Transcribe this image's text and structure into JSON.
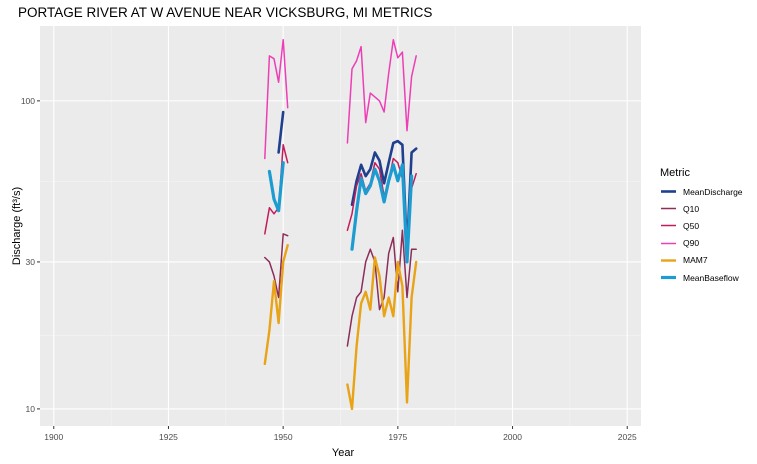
{
  "chart_data": {
    "type": "line",
    "title": "PORTAGE RIVER AT W AVENUE NEAR VICKSBURG, MI  METRICS",
    "xlabel": "Year",
    "ylabel": "Discharge (ft³/s)",
    "x_ticks": [
      1900,
      1925,
      1950,
      1975,
      2000,
      2025
    ],
    "y_ticks": [
      10,
      30,
      100
    ],
    "y_scale": "log10",
    "xlim": [
      1897,
      2028
    ],
    "ylim": [
      8.8,
      175
    ],
    "legend_title": "Metric",
    "legend_position": "right",
    "background": "#ebebeb",
    "grid": true,
    "series": [
      {
        "name": "MeanDischarge",
        "color": "#1f3f8f",
        "width": 2.6,
        "segments": [
          [
            [
              1949,
              68
            ],
            [
              1950,
              92
            ]
          ],
          [
            [
              1965,
              46
            ],
            [
              1966,
              55
            ],
            [
              1967,
              62
            ],
            [
              1968,
              57
            ],
            [
              1969,
              60
            ],
            [
              1970,
              68
            ],
            [
              1971,
              64
            ],
            [
              1972,
              54
            ],
            [
              1973,
              63
            ],
            [
              1974,
              73
            ],
            [
              1975,
              74
            ],
            [
              1976,
              72
            ],
            [
              1977,
              33
            ],
            [
              1978,
              68
            ],
            [
              1979,
              70
            ]
          ]
        ]
      },
      {
        "name": "Q10",
        "color": "#8c2d5a",
        "width": 1.5,
        "segments": [
          [
            [
              1946,
              31
            ],
            [
              1947,
              30
            ],
            [
              1948,
              27
            ],
            [
              1949,
              23
            ],
            [
              1950,
              37
            ],
            [
              1951,
              36.5
            ]
          ],
          [
            [
              1964,
              16
            ],
            [
              1965,
              20
            ],
            [
              1966,
              23
            ],
            [
              1967,
              24
            ],
            [
              1968,
              30
            ],
            [
              1969,
              33
            ],
            [
              1970,
              30
            ],
            [
              1971,
              21
            ],
            [
              1972,
              23
            ],
            [
              1973,
              32
            ],
            [
              1974,
              36
            ],
            [
              1975,
              24
            ],
            [
              1976,
              38
            ],
            [
              1977,
              23
            ],
            [
              1978,
              33
            ],
            [
              1979,
              33
            ]
          ]
        ]
      },
      {
        "name": "Q50",
        "color": "#c21c5a",
        "width": 1.5,
        "segments": [
          [
            [
              1946,
              37
            ],
            [
              1947,
              45
            ],
            [
              1948,
              43
            ],
            [
              1949,
              45
            ],
            [
              1950,
              72
            ],
            [
              1951,
              63
            ]
          ],
          [
            [
              1964,
              38
            ],
            [
              1965,
              43
            ],
            [
              1966,
              53
            ],
            [
              1967,
              58
            ],
            [
              1968,
              51
            ],
            [
              1969,
              54
            ],
            [
              1970,
              63
            ],
            [
              1971,
              60
            ],
            [
              1972,
              49
            ],
            [
              1973,
              55
            ],
            [
              1974,
              65
            ],
            [
              1975,
              63
            ],
            [
              1976,
              56
            ],
            [
              1977,
              36
            ],
            [
              1978,
              52
            ],
            [
              1979,
              58
            ]
          ]
        ]
      },
      {
        "name": "Q90",
        "color": "#ee3eb6",
        "width": 1.5,
        "segments": [
          [
            [
              1946,
              65
            ],
            [
              1947,
              140
            ],
            [
              1948,
              137
            ],
            [
              1949,
              115
            ],
            [
              1950,
              158
            ],
            [
              1951,
              95
            ]
          ],
          [
            [
              1964,
              73
            ],
            [
              1965,
              127
            ],
            [
              1966,
              135
            ],
            [
              1967,
              150
            ],
            [
              1968,
              85
            ],
            [
              1969,
              106
            ],
            [
              1970,
              103
            ],
            [
              1971,
              100
            ],
            [
              1972,
              92
            ],
            [
              1973,
              123
            ],
            [
              1974,
              158
            ],
            [
              1975,
              138
            ],
            [
              1976,
              144
            ],
            [
              1977,
              80
            ],
            [
              1978,
              120
            ],
            [
              1979,
              140
            ]
          ]
        ]
      },
      {
        "name": "MAM7",
        "color": "#e8a317",
        "width": 2.4,
        "segments": [
          [
            [
              1946,
              14
            ],
            [
              1947,
              18
            ],
            [
              1948,
              26
            ],
            [
              1949,
              19
            ],
            [
              1950,
              30
            ],
            [
              1951,
              34
            ]
          ],
          [
            [
              1964,
              12
            ],
            [
              1965,
              10
            ],
            [
              1966,
              16
            ],
            [
              1967,
              22
            ],
            [
              1968,
              24
            ],
            [
              1969,
              21
            ],
            [
              1970,
              31
            ],
            [
              1971,
              27
            ],
            [
              1972,
              20
            ],
            [
              1973,
              23
            ],
            [
              1974,
              20
            ],
            [
              1975,
              30
            ],
            [
              1976,
              25
            ],
            [
              1977,
              10.5
            ],
            [
              1978,
              23
            ],
            [
              1979,
              30
            ]
          ]
        ]
      },
      {
        "name": "MeanBaseflow",
        "color": "#1c9cd0",
        "width": 3.2,
        "segments": [
          [
            [
              1947,
              59
            ],
            [
              1948,
              48
            ],
            [
              1949,
              44
            ],
            [
              1950,
              63
            ]
          ],
          [
            [
              1965,
              33
            ],
            [
              1966,
              44
            ],
            [
              1967,
              56
            ],
            [
              1968,
              50
            ],
            [
              1969,
              53
            ],
            [
              1970,
              60
            ],
            [
              1971,
              55
            ],
            [
              1972,
              47
            ],
            [
              1973,
              55
            ],
            [
              1974,
              62
            ],
            [
              1975,
              55
            ],
            [
              1976,
              62
            ],
            [
              1977,
              30
            ],
            [
              1978,
              57
            ]
          ]
        ]
      }
    ]
  }
}
